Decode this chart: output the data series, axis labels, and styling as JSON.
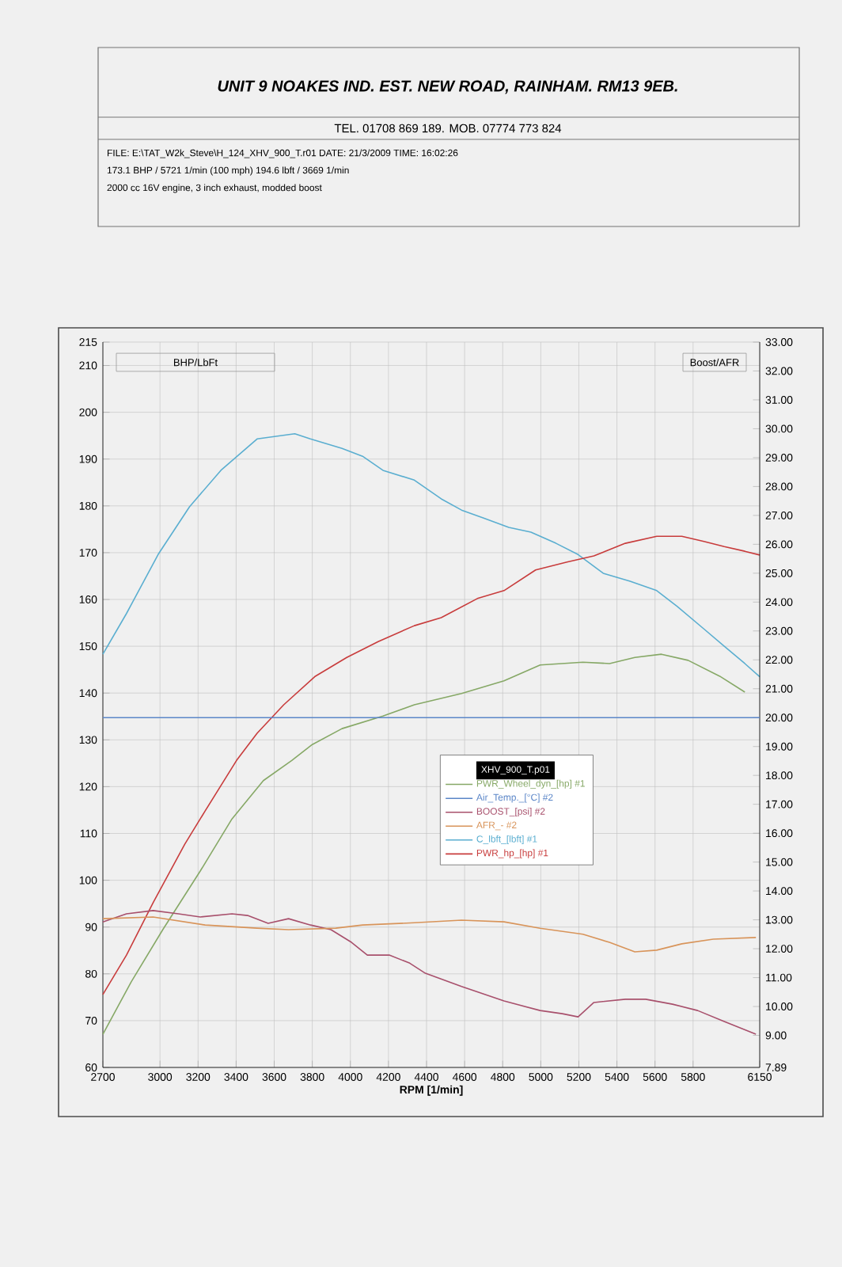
{
  "chart_data": {
    "type": "line",
    "title": "UNIT 9 NOAKES IND. EST. NEW ROAD, RAINHAM. RM13 9EB.",
    "annotations": [
      "TEL. 01708 869 189. MOB. 07774 773 824",
      "FILE: E:\\TAT_W2k_Steve\\H_124_XHV_900_T.r01  DATE: 21/3/2009  TIME: 16:02:26",
      "173.1 BHP / 5721 1/min (100 mph)    194.6 lbft / 3669 1/min",
      "2000 cc 16V engine, 3 inch exhaust, modded boost"
    ],
    "xlabel": "RPM [1/min]",
    "ylabel": "BHP/LbFt",
    "y2label": "Boost/AFR",
    "legend_title": "XHV_900_T.p01",
    "xlim": [
      2700,
      6150
    ],
    "xticks": [
      2700,
      3000,
      3200,
      3400,
      3600,
      3800,
      4000,
      4200,
      4400,
      4600,
      4800,
      5000,
      5200,
      5400,
      5600,
      5800,
      6150
    ],
    "ylim": [
      60,
      215
    ],
    "yticks": [
      60,
      70,
      80,
      90,
      100,
      110,
      120,
      130,
      140,
      150,
      160,
      170,
      180,
      190,
      200,
      210,
      215
    ],
    "y2lim": [
      7.89,
      33
    ],
    "y2ticks": [
      {
        "value": 7.89,
        "label": "7.89"
      },
      {
        "value": 9,
        "label": "9.00"
      },
      {
        "value": 10,
        "label": "10.00"
      },
      {
        "value": 11,
        "label": "11.00"
      },
      {
        "value": 12,
        "label": "12.00"
      },
      {
        "value": 13,
        "label": "13.00"
      },
      {
        "value": 14,
        "label": "14.00"
      },
      {
        "value": 15,
        "label": "15.00"
      },
      {
        "value": 16,
        "label": "16.00"
      },
      {
        "value": 17,
        "label": "17.00"
      },
      {
        "value": 18,
        "label": "18.00"
      },
      {
        "value": 19,
        "label": "19.00"
      },
      {
        "value": 20,
        "label": "20.00"
      },
      {
        "value": 21,
        "label": "21.00"
      },
      {
        "value": 22,
        "label": "22.00"
      },
      {
        "value": 23,
        "label": "23.00"
      },
      {
        "value": 24,
        "label": "24.00"
      },
      {
        "value": 25,
        "label": "25.00"
      },
      {
        "value": 26,
        "label": "26.00"
      },
      {
        "value": 27,
        "label": "27.00"
      },
      {
        "value": 28,
        "label": "28.00"
      },
      {
        "value": 29,
        "label": "29.00"
      },
      {
        "value": 30,
        "label": "30.00"
      },
      {
        "value": 31,
        "label": "31.00"
      },
      {
        "value": 32,
        "label": "32.00"
      },
      {
        "value": 33,
        "label": "33.00"
      }
    ],
    "grid": true,
    "legend": "center",
    "series": [
      {
        "name": "PWR_Wheel_dyn_[hp] #1",
        "color": "#86a866",
        "axis": "y",
        "x": [
          2700,
          2849,
          3014,
          3212,
          3378,
          3543,
          3692,
          3800,
          3956,
          4171,
          4336,
          4584,
          4807,
          4997,
          5221,
          5361,
          5494,
          5634,
          5774,
          5940,
          6072
        ],
        "values": [
          67.1,
          78.3,
          89.4,
          102,
          113.1,
          121.3,
          125.6,
          129,
          132.4,
          135.1,
          137.5,
          139.9,
          142.6,
          146,
          146.6,
          146.3,
          147.6,
          148.3,
          147,
          143.6,
          140.2
        ]
      },
      {
        "name": "Air_Temp._[°C] #2",
        "color": "#5b86c8",
        "axis": "y2",
        "x": [
          2700,
          6150
        ],
        "values": [
          20,
          20
        ]
      },
      {
        "name": "BOOST_[psi] #2",
        "color": "#a8506c",
        "axis": "y2",
        "x": [
          2700,
          2824,
          2964,
          3097,
          3212,
          3378,
          3460,
          3568,
          3675,
          3791,
          3898,
          4006,
          4089,
          4204,
          4312,
          4394,
          4584,
          4807,
          4997,
          5113,
          5196,
          5279,
          5444,
          5551,
          5692,
          5824,
          5964,
          6130
        ],
        "values": [
          12.93,
          13.21,
          13.32,
          13.21,
          13.1,
          13.21,
          13.15,
          12.88,
          13.04,
          12.82,
          12.66,
          12.22,
          11.78,
          11.78,
          11.5,
          11.15,
          10.69,
          10.19,
          9.86,
          9.75,
          9.64,
          10.14,
          10.25,
          10.25,
          10.08,
          9.86,
          9.48,
          9.04
        ]
      },
      {
        "name": "AFR_- #2",
        "color": "#d8945a",
        "axis": "y2",
        "x": [
          2700,
          2964,
          3237,
          3510,
          3675,
          3923,
          4064,
          4336,
          4584,
          4807,
          4997,
          5221,
          5361,
          5494,
          5609,
          5741,
          5906,
          6130
        ],
        "values": [
          13.04,
          13.1,
          12.82,
          12.71,
          12.66,
          12.71,
          12.82,
          12.9,
          12.99,
          12.93,
          12.71,
          12.5,
          12.22,
          11.89,
          11.95,
          12.17,
          12.33,
          12.39
        ]
      },
      {
        "name": "C_lbft_[lbft] #1",
        "color": "#5aaed0",
        "axis": "y",
        "x": [
          2700,
          2824,
          2990,
          3155,
          3320,
          3510,
          3708,
          3790,
          3956,
          4064,
          4171,
          4336,
          4477,
          4584,
          4700,
          4832,
          4948,
          5080,
          5196,
          5328,
          5469,
          5609,
          5717,
          5857,
          5964,
          6072,
          6150
        ],
        "values": [
          148.3,
          157,
          169.6,
          179.8,
          187.6,
          194.3,
          195.4,
          194.3,
          192.3,
          190.6,
          187.6,
          185.5,
          181.5,
          179.1,
          177.4,
          175.4,
          174.4,
          172,
          169.6,
          165.6,
          163.9,
          161.9,
          158.5,
          153.7,
          150,
          146.3,
          143.5
        ]
      },
      {
        "name": "PWR_hp_[hp] #1",
        "color": "#c83c3c",
        "axis": "y",
        "x": [
          2700,
          2824,
          2964,
          3130,
          3237,
          3402,
          3510,
          3650,
          3816,
          3981,
          4146,
          4336,
          4477,
          4667,
          4807,
          4973,
          5138,
          5279,
          5444,
          5609,
          5741,
          5857,
          5964,
          6072,
          6150
        ],
        "values": [
          75.6,
          84,
          95.2,
          107.7,
          114.8,
          125.6,
          131.4,
          137.5,
          143.6,
          147.6,
          151,
          154.4,
          156.1,
          160.2,
          161.9,
          166.3,
          168,
          169.3,
          172,
          173.5,
          173.5,
          172.4,
          171.3,
          170.3,
          169.5
        ]
      }
    ]
  }
}
